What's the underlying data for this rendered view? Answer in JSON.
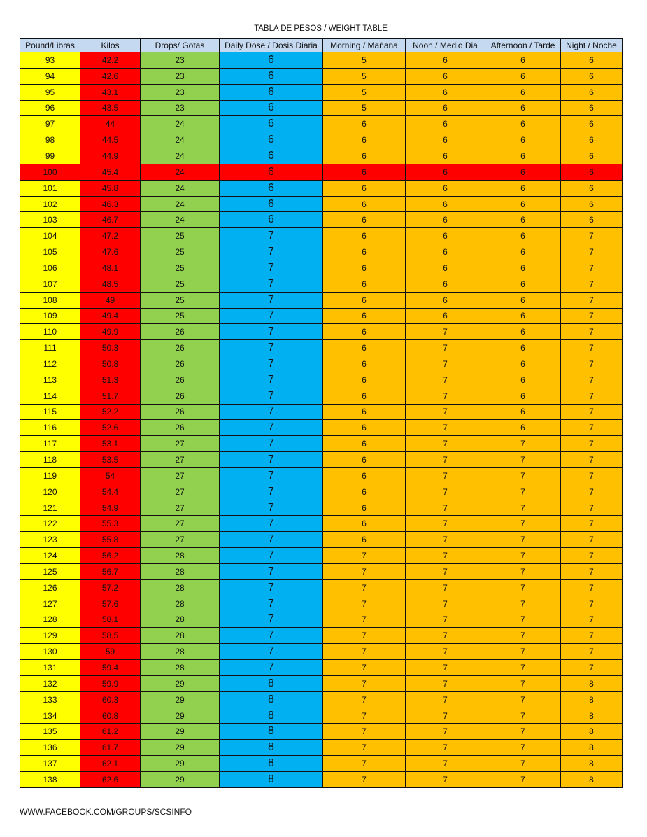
{
  "title": "TABLA DE PESOS / WEIGHT TABLE",
  "headers": [
    "Pound/Libras",
    "Kilos",
    "Drops/ Gotas",
    "Daily Dose / Dosis Diaria",
    "Morning / Mañana",
    "Noon / Medio Dia",
    "Afternoon / Tarde",
    "Night / Noche"
  ],
  "colors": {
    "pounds": "#ffff00",
    "kilos": "#ff0000",
    "drops": "#92d050",
    "daily": "#00b0f0",
    "doses": "#ffc000",
    "header": "#c5d9f1",
    "highlight_row": "#ff0000"
  },
  "highlighted_row_pounds": "100",
  "rows": [
    [
      "93",
      "42.2",
      "23",
      "6",
      "5",
      "6",
      "6",
      "6"
    ],
    [
      "94",
      "42.6",
      "23",
      "6",
      "5",
      "6",
      "6",
      "6"
    ],
    [
      "95",
      "43.1",
      "23",
      "6",
      "5",
      "6",
      "6",
      "6"
    ],
    [
      "96",
      "43.5",
      "23",
      "6",
      "5",
      "6",
      "6",
      "6"
    ],
    [
      "97",
      "44",
      "24",
      "6",
      "6",
      "6",
      "6",
      "6"
    ],
    [
      "98",
      "44.5",
      "24",
      "6",
      "6",
      "6",
      "6",
      "6"
    ],
    [
      "99",
      "44.9",
      "24",
      "6",
      "6",
      "6",
      "6",
      "6"
    ],
    [
      "100",
      "45.4",
      "24",
      "6",
      "6",
      "6",
      "6",
      "6"
    ],
    [
      "101",
      "45.8",
      "24",
      "6",
      "6",
      "6",
      "6",
      "6"
    ],
    [
      "102",
      "46.3",
      "24",
      "6",
      "6",
      "6",
      "6",
      "6"
    ],
    [
      "103",
      "46.7",
      "24",
      "6",
      "6",
      "6",
      "6",
      "6"
    ],
    [
      "104",
      "47.2",
      "25",
      "7",
      "6",
      "6",
      "6",
      "7"
    ],
    [
      "105",
      "47.6",
      "25",
      "7",
      "6",
      "6",
      "6",
      "7"
    ],
    [
      "106",
      "48.1",
      "25",
      "7",
      "6",
      "6",
      "6",
      "7"
    ],
    [
      "107",
      "48.5",
      "25",
      "7",
      "6",
      "6",
      "6",
      "7"
    ],
    [
      "108",
      "49",
      "25",
      "7",
      "6",
      "6",
      "6",
      "7"
    ],
    [
      "109",
      "49.4",
      "25",
      "7",
      "6",
      "6",
      "6",
      "7"
    ],
    [
      "110",
      "49.9",
      "26",
      "7",
      "6",
      "7",
      "6",
      "7"
    ],
    [
      "111",
      "50.3",
      "26",
      "7",
      "6",
      "7",
      "6",
      "7"
    ],
    [
      "112",
      "50.8",
      "26",
      "7",
      "6",
      "7",
      "6",
      "7"
    ],
    [
      "113",
      "51.3",
      "26",
      "7",
      "6",
      "7",
      "6",
      "7"
    ],
    [
      "114",
      "51.7",
      "26",
      "7",
      "6",
      "7",
      "6",
      "7"
    ],
    [
      "115",
      "52.2",
      "26",
      "7",
      "6",
      "7",
      "6",
      "7"
    ],
    [
      "116",
      "52.6",
      "26",
      "7",
      "6",
      "7",
      "6",
      "7"
    ],
    [
      "117",
      "53.1",
      "27",
      "7",
      "6",
      "7",
      "7",
      "7"
    ],
    [
      "118",
      "53.5",
      "27",
      "7",
      "6",
      "7",
      "7",
      "7"
    ],
    [
      "119",
      "54",
      "27",
      "7",
      "6",
      "7",
      "7",
      "7"
    ],
    [
      "120",
      "54.4",
      "27",
      "7",
      "6",
      "7",
      "7",
      "7"
    ],
    [
      "121",
      "54.9",
      "27",
      "7",
      "6",
      "7",
      "7",
      "7"
    ],
    [
      "122",
      "55.3",
      "27",
      "7",
      "6",
      "7",
      "7",
      "7"
    ],
    [
      "123",
      "55.8",
      "27",
      "7",
      "6",
      "7",
      "7",
      "7"
    ],
    [
      "124",
      "56.2",
      "28",
      "7",
      "7",
      "7",
      "7",
      "7"
    ],
    [
      "125",
      "56.7",
      "28",
      "7",
      "7",
      "7",
      "7",
      "7"
    ],
    [
      "126",
      "57.2",
      "28",
      "7",
      "7",
      "7",
      "7",
      "7"
    ],
    [
      "127",
      "57.6",
      "28",
      "7",
      "7",
      "7",
      "7",
      "7"
    ],
    [
      "128",
      "58.1",
      "28",
      "7",
      "7",
      "7",
      "7",
      "7"
    ],
    [
      "129",
      "58.5",
      "28",
      "7",
      "7",
      "7",
      "7",
      "7"
    ],
    [
      "130",
      "59",
      "28",
      "7",
      "7",
      "7",
      "7",
      "7"
    ],
    [
      "131",
      "59.4",
      "28",
      "7",
      "7",
      "7",
      "7",
      "7"
    ],
    [
      "132",
      "59.9",
      "29",
      "8",
      "7",
      "7",
      "7",
      "8"
    ],
    [
      "133",
      "60.3",
      "29",
      "8",
      "7",
      "7",
      "7",
      "8"
    ],
    [
      "134",
      "60.8",
      "29",
      "8",
      "7",
      "7",
      "7",
      "8"
    ],
    [
      "135",
      "61.2",
      "29",
      "8",
      "7",
      "7",
      "7",
      "8"
    ],
    [
      "136",
      "61.7",
      "29",
      "8",
      "7",
      "7",
      "7",
      "8"
    ],
    [
      "137",
      "62.1",
      "29",
      "8",
      "7",
      "7",
      "7",
      "8"
    ],
    [
      "138",
      "62.6",
      "29",
      "8",
      "7",
      "7",
      "7",
      "8"
    ]
  ],
  "footer": "WWW.FACEBOOK.COM/GROUPS/SCSINFO"
}
